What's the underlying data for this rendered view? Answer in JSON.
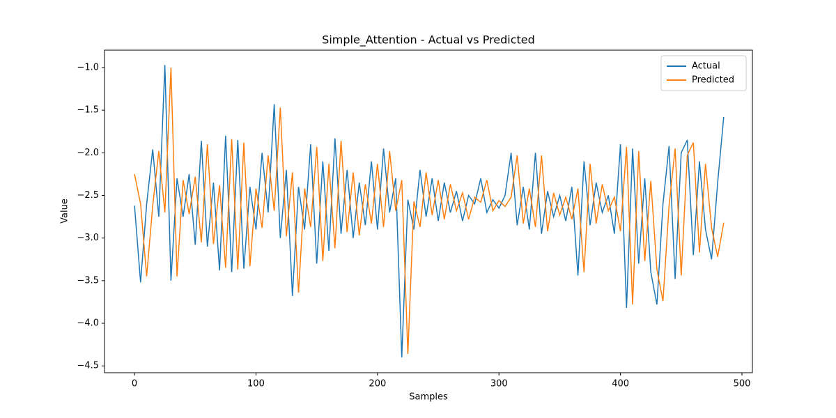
{
  "chart_data": {
    "type": "line",
    "title": "Simple_Attention - Actual vs Predicted",
    "x_label": "Samples",
    "y_label": "Value",
    "x": [
      0,
      5,
      10,
      15,
      20,
      25,
      30,
      35,
      40,
      45,
      50,
      55,
      60,
      65,
      70,
      75,
      80,
      85,
      90,
      95,
      100,
      105,
      110,
      115,
      120,
      125,
      130,
      135,
      140,
      145,
      150,
      155,
      160,
      165,
      170,
      175,
      180,
      185,
      190,
      195,
      200,
      205,
      210,
      215,
      220,
      225,
      230,
      235,
      240,
      245,
      250,
      255,
      260,
      265,
      270,
      275,
      280,
      285,
      290,
      295,
      300,
      305,
      310,
      315,
      320,
      325,
      330,
      335,
      340,
      345,
      350,
      355,
      360,
      365,
      370,
      375,
      380,
      385,
      390,
      395,
      400,
      405,
      410,
      415,
      420,
      425,
      430,
      435,
      440,
      445,
      450,
      455,
      460,
      465,
      470,
      475,
      480,
      485
    ],
    "series": [
      {
        "name": "Actual",
        "color": "#1f77b4",
        "values": [
          -2.62,
          -3.52,
          -2.6,
          -1.96,
          -2.75,
          -0.97,
          -3.5,
          -2.3,
          -2.75,
          -2.25,
          -3.08,
          -1.86,
          -3.1,
          -2.35,
          -3.38,
          -1.8,
          -3.4,
          -1.85,
          -3.36,
          -2.4,
          -2.9,
          -2.0,
          -2.7,
          -1.43,
          -3.0,
          -2.2,
          -3.68,
          -2.4,
          -2.9,
          -1.9,
          -3.3,
          -2.1,
          -3.15,
          -1.83,
          -2.95,
          -2.2,
          -3.0,
          -2.35,
          -2.85,
          -2.1,
          -2.9,
          -1.95,
          -2.7,
          -2.3,
          -4.4,
          -2.55,
          -2.9,
          -2.2,
          -2.75,
          -2.3,
          -2.8,
          -2.35,
          -2.7,
          -2.45,
          -2.8,
          -2.5,
          -2.6,
          -2.3,
          -2.7,
          -2.55,
          -2.65,
          -2.5,
          -2.0,
          -2.85,
          -2.4,
          -2.9,
          -2.0,
          -2.95,
          -2.45,
          -2.75,
          -2.5,
          -2.8,
          -2.4,
          -3.44,
          -2.1,
          -2.85,
          -2.35,
          -2.7,
          -2.5,
          -2.95,
          -1.9,
          -3.82,
          -1.95,
          -3.3,
          -2.3,
          -3.4,
          -3.78,
          -2.6,
          -1.92,
          -3.48,
          -2.0,
          -1.85,
          -3.2,
          -2.1,
          -2.9,
          -3.25,
          -2.35,
          -1.58
        ]
      },
      {
        "name": "Predicted",
        "color": "#ff7f0e",
        "values": [
          -2.25,
          -2.6,
          -3.45,
          -2.62,
          -1.98,
          -2.7,
          -1.0,
          -3.45,
          -2.32,
          -2.72,
          -2.28,
          -3.05,
          -1.9,
          -3.07,
          -2.38,
          -3.35,
          -1.84,
          -3.37,
          -1.88,
          -3.33,
          -2.42,
          -2.88,
          -2.03,
          -2.68,
          -1.47,
          -2.98,
          -2.23,
          -3.64,
          -2.42,
          -2.87,
          -1.93,
          -3.27,
          -2.13,
          -3.12,
          -1.86,
          -2.93,
          -2.23,
          -2.97,
          -2.37,
          -2.83,
          -2.13,
          -2.87,
          -1.98,
          -2.68,
          -2.32,
          -4.36,
          -2.57,
          -2.87,
          -2.23,
          -2.73,
          -2.32,
          -2.78,
          -2.37,
          -2.68,
          -2.47,
          -2.78,
          -2.52,
          -2.58,
          -2.32,
          -2.68,
          -2.56,
          -2.63,
          -2.52,
          -2.03,
          -2.83,
          -2.42,
          -2.87,
          -2.03,
          -2.92,
          -2.47,
          -2.73,
          -2.52,
          -2.78,
          -2.42,
          -3.4,
          -2.13,
          -2.83,
          -2.37,
          -2.68,
          -2.52,
          -2.92,
          -1.93,
          -3.78,
          -1.98,
          -3.27,
          -2.33,
          -3.37,
          -3.74,
          -2.62,
          -1.95,
          -3.44,
          -2.03,
          -1.88,
          -3.17,
          -2.13,
          -2.88,
          -3.22,
          -2.82
        ]
      }
    ],
    "xlim": [
      -24.7,
      508.6
    ],
    "xticks": [
      0,
      100,
      200,
      300,
      400,
      500
    ],
    "ylim": [
      -4.58,
      -0.796
    ],
    "yticks": [
      {
        "value": -4.5,
        "label": "−4.5"
      },
      {
        "value": -4.0,
        "label": "−4.0"
      },
      {
        "value": -3.5,
        "label": "−3.5"
      },
      {
        "value": -3.0,
        "label": "−3.0"
      },
      {
        "value": -2.5,
        "label": "−2.5"
      },
      {
        "value": -2.0,
        "label": "−2.0"
      },
      {
        "value": -1.5,
        "label": "−1.5"
      },
      {
        "value": -1.0,
        "label": "−1.0"
      }
    ],
    "grid": false,
    "legend": "upper right"
  }
}
